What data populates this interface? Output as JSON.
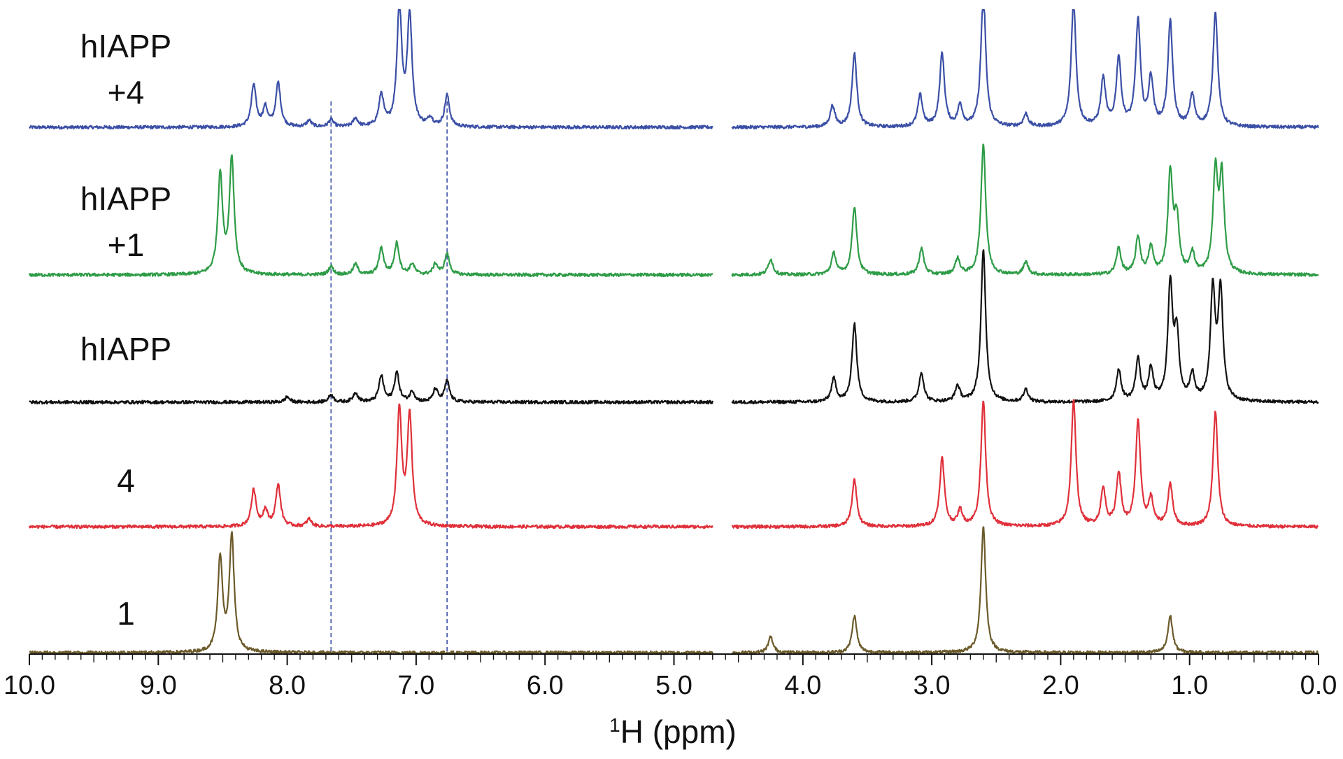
{
  "chart_data": {
    "type": "line",
    "description_type": "stacked 1H NMR spectra",
    "xlabel_sup": "1",
    "xlabel_main": "H (ppm)",
    "x_axis": {
      "min": 0.0,
      "max": 10.0,
      "reversed": true,
      "major_ticks": [
        10.0,
        9.0,
        8.0,
        7.0,
        6.0,
        5.0,
        4.0,
        3.0,
        2.0,
        1.0,
        0.0
      ],
      "tick_labels": [
        "10.0",
        "9.0",
        "8.0",
        "7.0",
        "6.0",
        "5.0",
        "4.0",
        "3.0",
        "2.0",
        "1.0",
        "0.0"
      ],
      "minor_step": 0.1
    },
    "axis_break_ppm": [
      4.55,
      4.7
    ],
    "reference_lines_ppm": [
      7.66,
      6.76
    ],
    "reference_line_style": "dashed",
    "series": [
      {
        "name": "hIAPP +4",
        "label_lines": [
          "hIAPP",
          "+4"
        ],
        "color": "#3b4fa6",
        "peaks": [
          {
            "ppm": 8.26,
            "height": 0.4
          },
          {
            "ppm": 8.17,
            "height": 0.18
          },
          {
            "ppm": 8.07,
            "height": 0.42
          },
          {
            "ppm": 7.83,
            "height": 0.06
          },
          {
            "ppm": 7.66,
            "height": 0.07
          },
          {
            "ppm": 7.47,
            "height": 0.08
          },
          {
            "ppm": 7.27,
            "height": 0.3
          },
          {
            "ppm": 7.13,
            "height": 1.15
          },
          {
            "ppm": 7.05,
            "height": 1.05
          },
          {
            "ppm": 6.89,
            "height": 0.08
          },
          {
            "ppm": 6.76,
            "height": 0.3
          },
          {
            "ppm": 3.77,
            "height": 0.2
          },
          {
            "ppm": 3.6,
            "height": 0.7
          },
          {
            "ppm": 3.09,
            "height": 0.3
          },
          {
            "ppm": 2.92,
            "height": 0.7
          },
          {
            "ppm": 2.78,
            "height": 0.2
          },
          {
            "ppm": 2.6,
            "height": 1.3
          },
          {
            "ppm": 2.27,
            "height": 0.12
          },
          {
            "ppm": 1.9,
            "height": 1.2
          },
          {
            "ppm": 1.67,
            "height": 0.45
          },
          {
            "ppm": 1.55,
            "height": 0.65
          },
          {
            "ppm": 1.4,
            "height": 1.0
          },
          {
            "ppm": 1.3,
            "height": 0.45
          },
          {
            "ppm": 1.15,
            "height": 1.0
          },
          {
            "ppm": 0.98,
            "height": 0.3
          },
          {
            "ppm": 0.8,
            "height": 1.1
          }
        ]
      },
      {
        "name": "hIAPP +1",
        "label_lines": [
          "hIAPP",
          "+1"
        ],
        "color": "#2e9c47",
        "peaks": [
          {
            "ppm": 8.52,
            "height": 0.95
          },
          {
            "ppm": 8.43,
            "height": 1.1
          },
          {
            "ppm": 7.66,
            "height": 0.08
          },
          {
            "ppm": 7.47,
            "height": 0.1
          },
          {
            "ppm": 7.27,
            "height": 0.25
          },
          {
            "ppm": 7.15,
            "height": 0.3
          },
          {
            "ppm": 7.03,
            "height": 0.1
          },
          {
            "ppm": 6.85,
            "height": 0.1
          },
          {
            "ppm": 6.76,
            "height": 0.2
          },
          {
            "ppm": 4.25,
            "height": 0.15
          },
          {
            "ppm": 3.76,
            "height": 0.2
          },
          {
            "ppm": 3.6,
            "height": 0.65
          },
          {
            "ppm": 3.08,
            "height": 0.25
          },
          {
            "ppm": 2.8,
            "height": 0.15
          },
          {
            "ppm": 2.6,
            "height": 1.25
          },
          {
            "ppm": 2.27,
            "height": 0.12
          },
          {
            "ppm": 1.55,
            "height": 0.25
          },
          {
            "ppm": 1.4,
            "height": 0.35
          },
          {
            "ppm": 1.3,
            "height": 0.25
          },
          {
            "ppm": 1.15,
            "height": 0.95
          },
          {
            "ppm": 1.1,
            "height": 0.5
          },
          {
            "ppm": 0.98,
            "height": 0.2
          },
          {
            "ppm": 0.8,
            "height": 0.95
          },
          {
            "ppm": 0.75,
            "height": 0.9
          }
        ]
      },
      {
        "name": "hIAPP",
        "label_lines": [
          "hIAPP"
        ],
        "color": "#111111",
        "peaks": [
          {
            "ppm": 8.0,
            "height": 0.05
          },
          {
            "ppm": 7.66,
            "height": 0.07
          },
          {
            "ppm": 7.47,
            "height": 0.09
          },
          {
            "ppm": 7.27,
            "height": 0.25
          },
          {
            "ppm": 7.15,
            "height": 0.28
          },
          {
            "ppm": 7.03,
            "height": 0.1
          },
          {
            "ppm": 6.85,
            "height": 0.12
          },
          {
            "ppm": 6.76,
            "height": 0.2
          },
          {
            "ppm": 3.76,
            "height": 0.22
          },
          {
            "ppm": 3.6,
            "height": 0.75
          },
          {
            "ppm": 3.08,
            "height": 0.28
          },
          {
            "ppm": 2.8,
            "height": 0.15
          },
          {
            "ppm": 2.6,
            "height": 1.45
          },
          {
            "ppm": 2.27,
            "height": 0.12
          },
          {
            "ppm": 1.55,
            "height": 0.3
          },
          {
            "ppm": 1.4,
            "height": 0.4
          },
          {
            "ppm": 1.3,
            "height": 0.3
          },
          {
            "ppm": 1.15,
            "height": 1.1
          },
          {
            "ppm": 1.1,
            "height": 0.6
          },
          {
            "ppm": 0.98,
            "height": 0.25
          },
          {
            "ppm": 0.82,
            "height": 1.05
          },
          {
            "ppm": 0.76,
            "height": 1.05
          }
        ]
      },
      {
        "name": "4",
        "label_lines": [
          "4"
        ],
        "color": "#e0303a",
        "peaks": [
          {
            "ppm": 8.26,
            "height": 0.35
          },
          {
            "ppm": 8.17,
            "height": 0.15
          },
          {
            "ppm": 8.07,
            "height": 0.4
          },
          {
            "ppm": 7.83,
            "height": 0.07
          },
          {
            "ppm": 7.13,
            "height": 1.1
          },
          {
            "ppm": 7.05,
            "height": 1.05
          },
          {
            "ppm": 3.6,
            "height": 0.45
          },
          {
            "ppm": 2.92,
            "height": 0.65
          },
          {
            "ppm": 2.78,
            "height": 0.15
          },
          {
            "ppm": 2.6,
            "height": 1.2
          },
          {
            "ppm": 1.9,
            "height": 1.2
          },
          {
            "ppm": 1.67,
            "height": 0.35
          },
          {
            "ppm": 1.55,
            "height": 0.5
          },
          {
            "ppm": 1.4,
            "height": 1.0
          },
          {
            "ppm": 1.3,
            "height": 0.25
          },
          {
            "ppm": 1.15,
            "height": 0.4
          },
          {
            "ppm": 0.8,
            "height": 1.1
          }
        ]
      },
      {
        "name": "1",
        "label_lines": [
          "1"
        ],
        "color": "#6b5a2a",
        "peaks": [
          {
            "ppm": 8.52,
            "height": 0.9
          },
          {
            "ppm": 8.43,
            "height": 1.1
          },
          {
            "ppm": 4.25,
            "height": 0.15
          },
          {
            "ppm": 3.6,
            "height": 0.35
          },
          {
            "ppm": 2.6,
            "height": 1.2
          },
          {
            "ppm": 1.15,
            "height": 0.35
          }
        ]
      }
    ]
  }
}
